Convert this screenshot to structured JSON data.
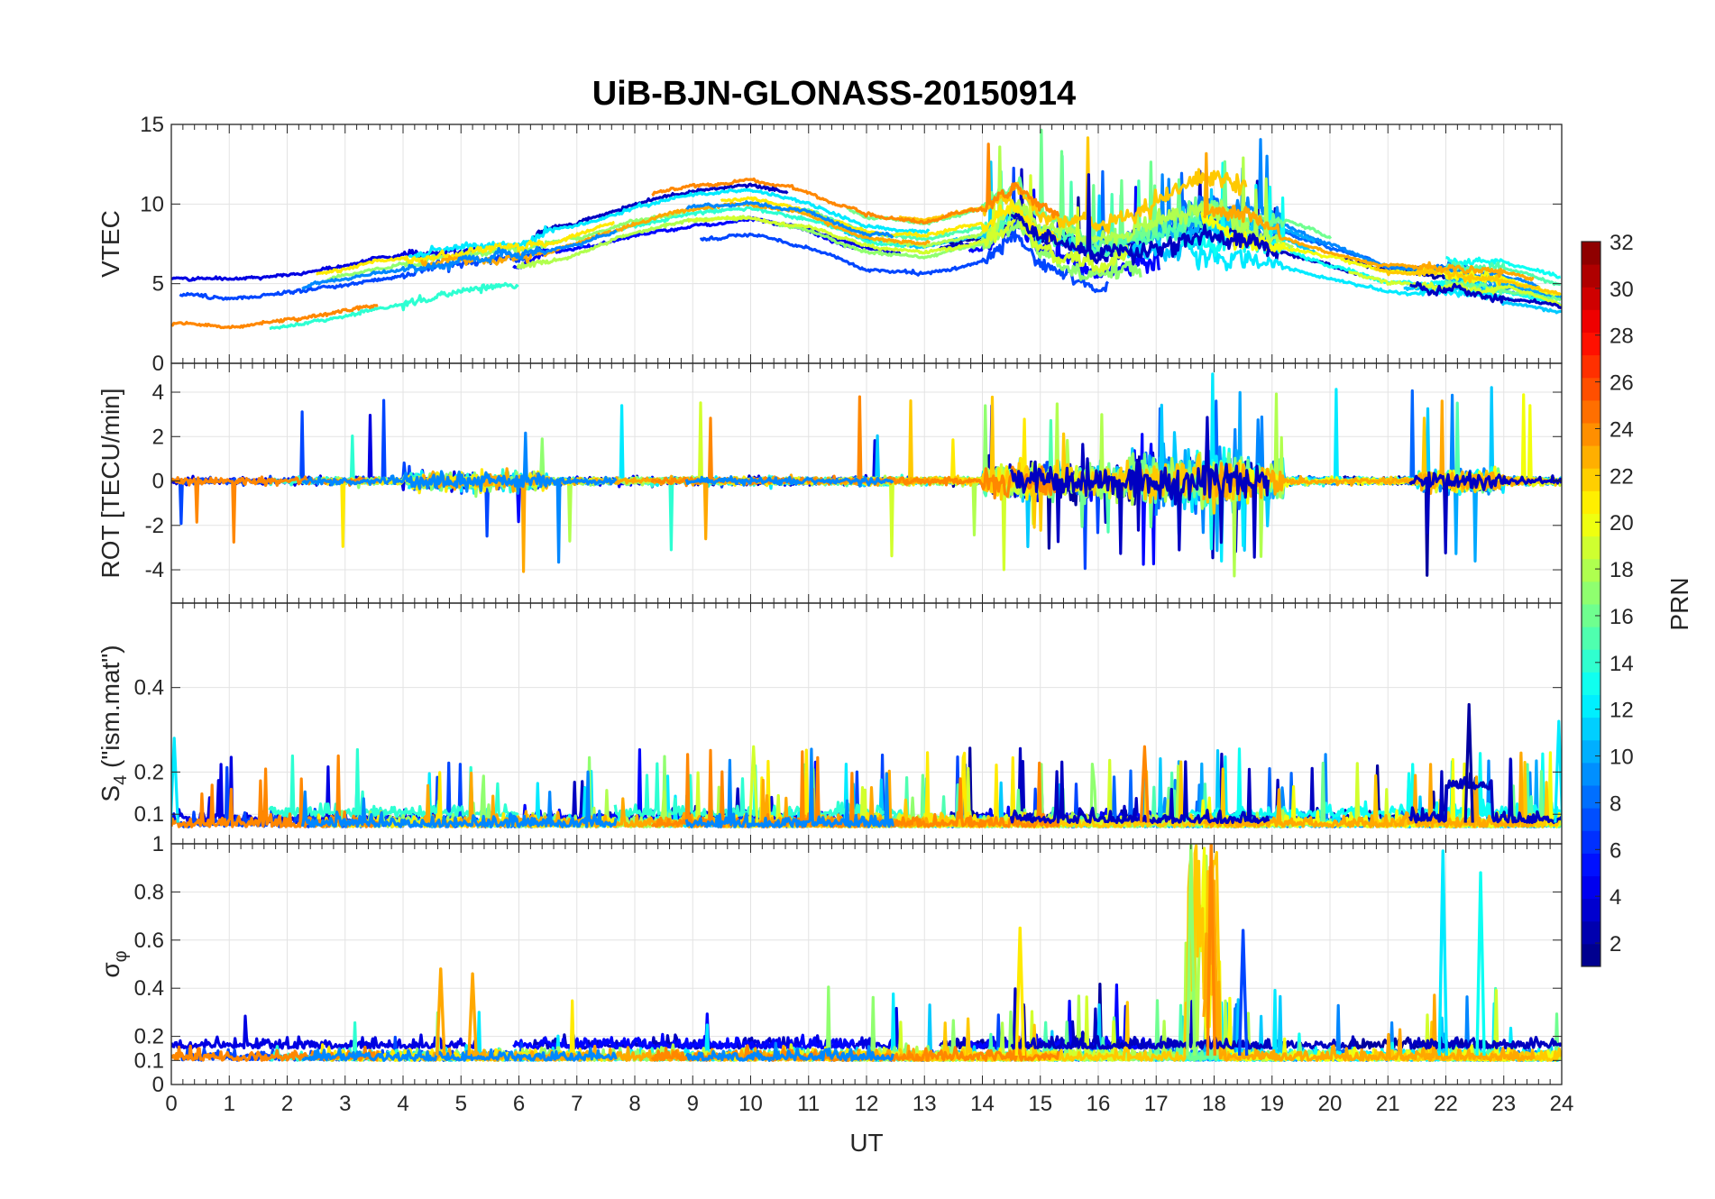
{
  "title": "UiB-BJN-GLONASS-20150914",
  "chart_data": {
    "type": "line",
    "title": "UiB-BJN-GLONASS-20150914",
    "xlabel": "UT",
    "xlim": [
      0,
      24
    ],
    "xticks": [
      "0",
      "1",
      "2",
      "3",
      "4",
      "5",
      "6",
      "7",
      "8",
      "9",
      "10",
      "11",
      "12",
      "13",
      "14",
      "15",
      "16",
      "17",
      "18",
      "19",
      "20",
      "21",
      "22",
      "23",
      "24"
    ],
    "grid": true,
    "series_count": 24,
    "panels": [
      {
        "id": "vtec",
        "ylabel": "VTEC",
        "ylim": [
          0,
          15
        ],
        "yticks": [
          "0",
          "5",
          "10",
          "15"
        ],
        "ytick_values": [
          0,
          5,
          10,
          15
        ],
        "typical_range": [
          1.5,
          14
        ],
        "envelope": {
          "x": [
            0,
            1,
            2,
            3,
            4,
            5,
            6,
            7,
            8,
            9,
            10,
            11,
            12,
            13,
            14,
            14.6,
            15,
            16,
            17,
            17.9,
            19,
            20,
            21,
            22,
            23,
            24
          ],
          "y": [
            4.5,
            4.2,
            4.6,
            5.2,
            5.9,
            6.5,
            6.8,
            7.6,
            8.8,
            9.6,
            9.9,
            9.2,
            7.8,
            7.4,
            8.2,
            9.6,
            8.0,
            6.8,
            7.6,
            8.4,
            7.6,
            6.4,
            5.4,
            5.2,
            4.9,
            4.0
          ]
        }
      },
      {
        "id": "rot",
        "ylabel": "ROT [TECU/min]",
        "ylim": [
          -5.5,
          5.3
        ],
        "yticks": [
          "-4",
          "-2",
          "0",
          "2",
          "4"
        ],
        "ytick_values": [
          -4,
          -2,
          0,
          2,
          4
        ],
        "typical_range": [
          -5.5,
          5
        ]
      },
      {
        "id": "s4",
        "ylabel": "S4 (\"ism.mat\")",
        "ylabel_main": "S",
        "ylabel_sub": "4",
        "ylabel_rest": " (\"ism.mat\")",
        "ylim": [
          0.03,
          0.6
        ],
        "yticks": [
          "0.1",
          "0.2",
          "0.4"
        ],
        "ytick_values": [
          0.1,
          0.2,
          0.4
        ],
        "typical_range": [
          0.04,
          0.36
        ]
      },
      {
        "id": "sigma_phi",
        "ylabel": "σφ",
        "ylabel_main": "σ",
        "ylabel_sub": "φ",
        "ylim": [
          0,
          1
        ],
        "yticks": [
          "0",
          "0.1",
          "0.2",
          "0.4",
          "0.6",
          "0.8",
          "1"
        ],
        "ytick_values": [
          0,
          0.1,
          0.2,
          0.4,
          0.6,
          0.8,
          1
        ],
        "typical_range": [
          0.05,
          1
        ]
      }
    ],
    "colorbar": {
      "label": "PRN",
      "range": [
        1,
        32
      ],
      "ticks": [
        "2",
        "4",
        "6",
        "8",
        "10",
        "12",
        "14",
        "16",
        "18",
        "20",
        "22",
        "24",
        "26",
        "28",
        "30",
        "32"
      ],
      "tick_values": [
        2,
        4,
        6,
        8,
        10,
        12,
        14,
        16,
        18,
        20,
        22,
        24,
        26,
        28,
        30,
        32
      ],
      "colormap": "jet",
      "stops": [
        "#00007f",
        "#0000ff",
        "#007fff",
        "#00ffff",
        "#7fff7f",
        "#ffff00",
        "#ff7f00",
        "#ff0000",
        "#7f0000"
      ]
    },
    "notes": [
      "Disturbed period near 14-19 UT visible as elevated ROT and phase scintillation",
      "sigma_phi peaks reach 1 near 17.6-18 UT, ~0.95 near 22 UT"
    ]
  }
}
